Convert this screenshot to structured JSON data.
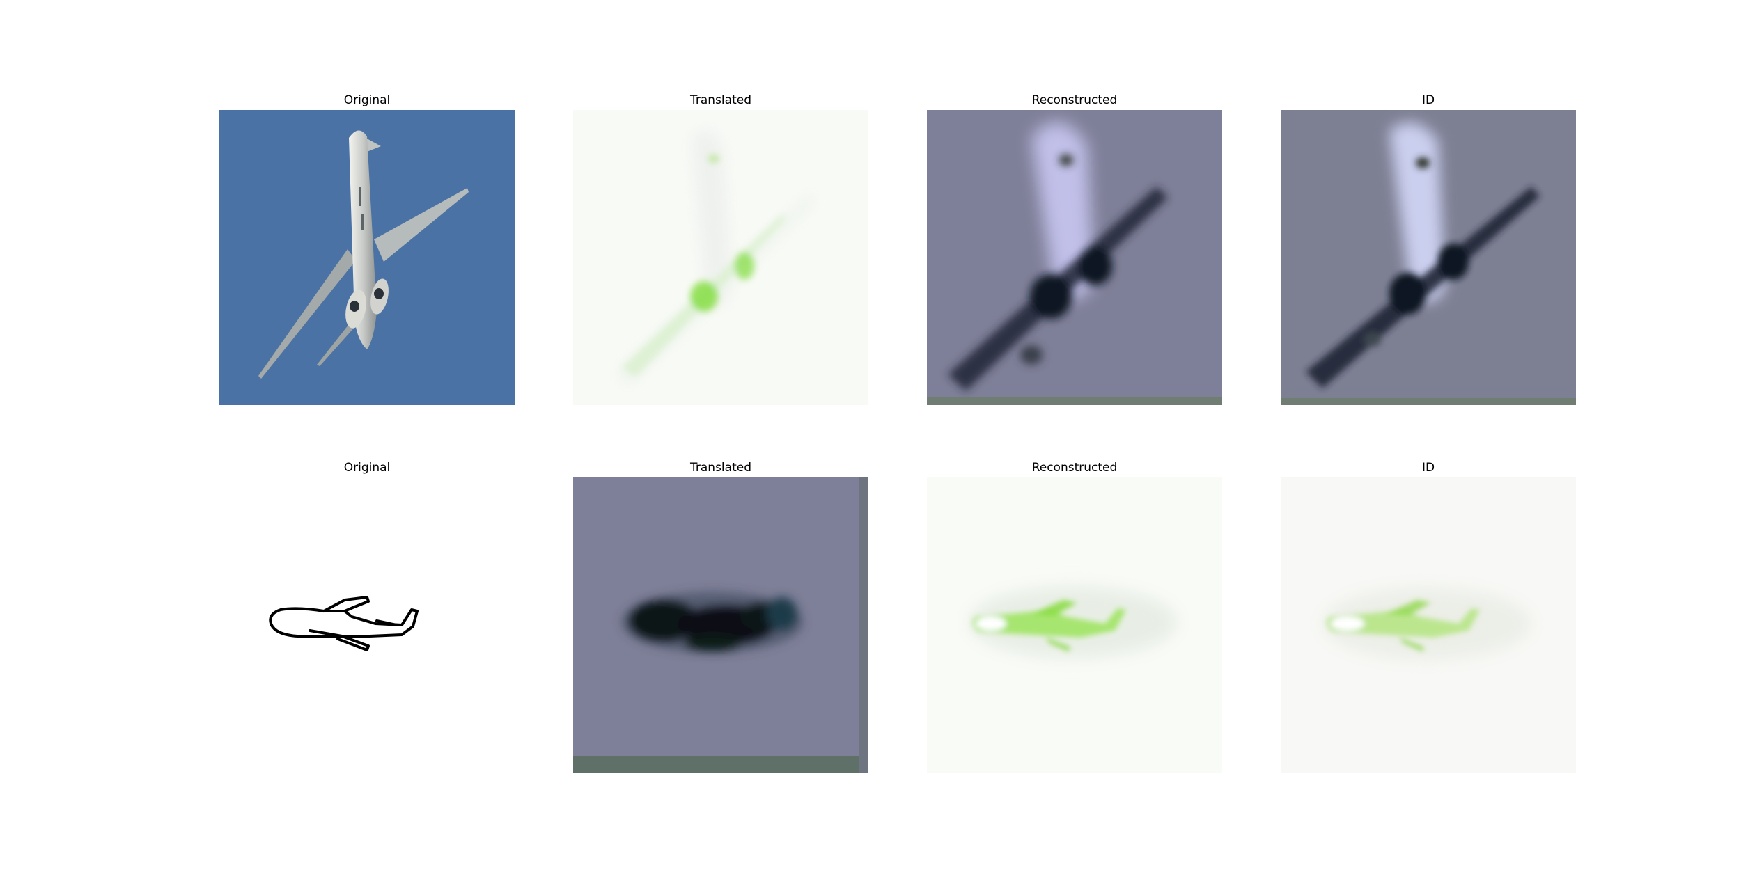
{
  "rows": [
    {
      "panels": [
        {
          "title": "Original",
          "image": "photo-airplane"
        },
        {
          "title": "Translated",
          "image": "sketch-like-airplane-faint-green"
        },
        {
          "title": "Reconstructed",
          "image": "blurry-airplane-on-gray"
        },
        {
          "title": "ID",
          "image": "blurry-airplane-on-gray"
        }
      ]
    },
    {
      "panels": [
        {
          "title": "Original",
          "image": "line-sketch-airplane"
        },
        {
          "title": "Translated",
          "image": "dark-airplane-blob-on-gray"
        },
        {
          "title": "Reconstructed",
          "image": "green-airplane-on-white"
        },
        {
          "title": "ID",
          "image": "green-airplane-on-white"
        }
      ]
    }
  ],
  "colors": {
    "sky_blue": "#4a72a4",
    "gray_purple": "#7e7f98",
    "gray_blue": "#7d7f93",
    "green": "#7fdc3a",
    "airplane_silver": "#c9ccc9"
  }
}
